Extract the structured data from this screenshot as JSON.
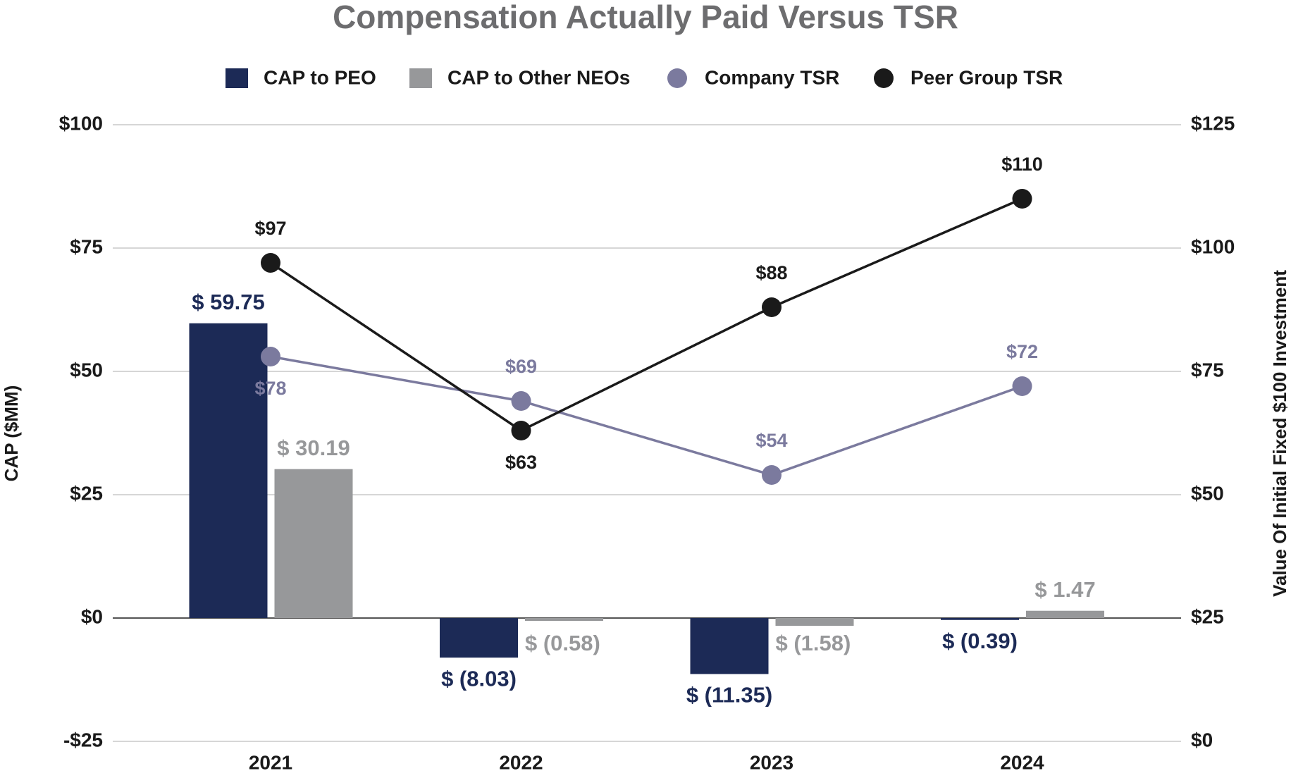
{
  "chart_data": {
    "type": "bar",
    "title": "Compensation Actually Paid Versus TSR",
    "y_label": "CAP ($MM)",
    "y2_label": "Value Of Initial Fixed $100 Investment",
    "categories": [
      "2021",
      "2022",
      "2023",
      "2024"
    ],
    "series": [
      {
        "name": "CAP to PEO",
        "type": "bar",
        "color": "#1c2a56",
        "values": [
          59.75,
          -8.03,
          -11.35,
          -0.39
        ],
        "value_labels": [
          "$ 59.75",
          "$ (8.03)",
          "$ (11.35)",
          "$ (0.39)"
        ]
      },
      {
        "name": "CAP to Other NEOs",
        "type": "bar",
        "color": "#97989a",
        "values": [
          30.19,
          -0.58,
          -1.58,
          1.47
        ],
        "value_labels": [
          "$ 30.19",
          "$ (0.58)",
          "$ (1.58)",
          "$ 1.47"
        ]
      },
      {
        "name": "Company TSR",
        "type": "line",
        "axis": "y2",
        "color": "#7b7a9e",
        "values": [
          78,
          69,
          54,
          72
        ],
        "value_labels": [
          "$78",
          "$69",
          "$54",
          "$72"
        ]
      },
      {
        "name": "Peer Group TSR",
        "type": "line",
        "axis": "y2",
        "color": "#1a1a1a",
        "values": [
          97,
          63,
          88,
          110
        ],
        "value_labels": [
          "$97",
          "$63",
          "$88",
          "$110"
        ]
      }
    ],
    "ylim": [
      -25,
      100
    ],
    "yticks": [
      {
        "value": 100,
        "label": "$100"
      },
      {
        "value": 75,
        "label": "$75"
      },
      {
        "value": 50,
        "label": "$50"
      },
      {
        "value": 25,
        "label": "$25"
      },
      {
        "value": 0,
        "label": "$0"
      },
      {
        "value": -25,
        "label": "-$25"
      }
    ],
    "y2lim": [
      0,
      125
    ],
    "y2ticks": [
      {
        "value": 125,
        "label": "$125"
      },
      {
        "value": 100,
        "label": "$100"
      },
      {
        "value": 75,
        "label": "$75"
      },
      {
        "value": 50,
        "label": "$50"
      },
      {
        "value": 25,
        "label": "$25"
      },
      {
        "value": 0,
        "label": "$0"
      }
    ],
    "grid": true,
    "legend": "top"
  }
}
